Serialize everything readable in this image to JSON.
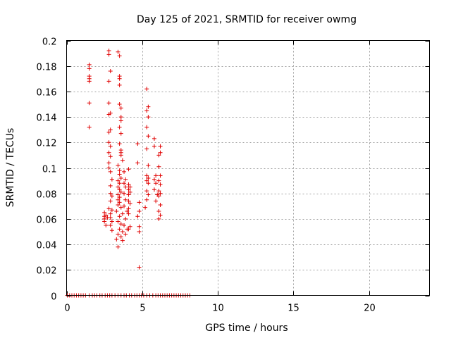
{
  "chart_data": {
    "type": "scatter",
    "title": "Day 125 of 2021, SRMTID for receiver owmg",
    "xlabel": "GPS time / hours",
    "ylabel": "SRMTID / TECUs",
    "xlim": [
      0,
      24
    ],
    "ylim": [
      0,
      0.2
    ],
    "xticks": [
      0,
      5,
      10,
      15,
      20
    ],
    "xtick_labels": [
      "0",
      "5",
      "10",
      "15",
      "20"
    ],
    "yticks": [
      0,
      0.02,
      0.04,
      0.06,
      0.08,
      0.1,
      0.12,
      0.14,
      0.16,
      0.18,
      0.2
    ],
    "ytick_labels": [
      "0",
      "0.02",
      "0.04",
      "0.06",
      "0.08",
      "0.1",
      "0.12",
      "0.14",
      "0.16",
      "0.18",
      "0.2"
    ],
    "grid": true,
    "marker": "+",
    "color": "#e00000",
    "series": [
      {
        "name": "SRMTID",
        "points": [
          [
            1.5,
            0.181
          ],
          [
            1.5,
            0.178
          ],
          [
            1.5,
            0.172
          ],
          [
            1.5,
            0.17
          ],
          [
            1.5,
            0.168
          ],
          [
            1.5,
            0.151
          ],
          [
            1.5,
            0.132
          ],
          [
            2.5,
            0.065
          ],
          [
            2.5,
            0.062
          ],
          [
            2.5,
            0.06
          ],
          [
            2.5,
            0.058
          ],
          [
            2.6,
            0.055
          ],
          [
            2.6,
            0.063
          ],
          [
            2.7,
            0.061
          ],
          [
            2.8,
            0.192
          ],
          [
            2.8,
            0.189
          ],
          [
            2.9,
            0.176
          ],
          [
            2.8,
            0.168
          ],
          [
            2.8,
            0.151
          ],
          [
            2.9,
            0.143
          ],
          [
            2.8,
            0.142
          ],
          [
            2.9,
            0.13
          ],
          [
            2.8,
            0.128
          ],
          [
            2.8,
            0.12
          ],
          [
            2.9,
            0.117
          ],
          [
            2.8,
            0.112
          ],
          [
            2.9,
            0.109
          ],
          [
            2.8,
            0.104
          ],
          [
            2.8,
            0.1
          ],
          [
            2.9,
            0.097
          ],
          [
            3.0,
            0.091
          ],
          [
            2.9,
            0.086
          ],
          [
            2.9,
            0.08
          ],
          [
            3.0,
            0.078
          ],
          [
            2.9,
            0.074
          ],
          [
            2.8,
            0.068
          ],
          [
            2.9,
            0.064
          ],
          [
            2.9,
            0.061
          ],
          [
            3.0,
            0.058
          ],
          [
            2.9,
            0.055
          ],
          [
            3.0,
            0.051
          ],
          [
            3.0,
            0.067
          ],
          [
            3.4,
            0.191
          ],
          [
            3.5,
            0.188
          ],
          [
            3.5,
            0.172
          ],
          [
            3.5,
            0.17
          ],
          [
            3.5,
            0.165
          ],
          [
            3.5,
            0.15
          ],
          [
            3.6,
            0.147
          ],
          [
            3.6,
            0.14
          ],
          [
            3.6,
            0.137
          ],
          [
            3.5,
            0.132
          ],
          [
            3.6,
            0.127
          ],
          [
            3.5,
            0.119
          ],
          [
            3.6,
            0.114
          ],
          [
            3.6,
            0.112
          ],
          [
            3.6,
            0.11
          ],
          [
            3.7,
            0.106
          ],
          [
            3.4,
            0.102
          ],
          [
            3.5,
            0.098
          ],
          [
            3.5,
            0.095
          ],
          [
            3.6,
            0.092
          ],
          [
            3.4,
            0.09
          ],
          [
            3.5,
            0.088
          ],
          [
            3.4,
            0.085
          ],
          [
            3.5,
            0.083
          ],
          [
            3.6,
            0.081
          ],
          [
            3.4,
            0.079
          ],
          [
            3.5,
            0.077
          ],
          [
            3.4,
            0.075
          ],
          [
            3.5,
            0.073
          ],
          [
            3.4,
            0.071
          ],
          [
            3.6,
            0.069
          ],
          [
            3.3,
            0.066
          ],
          [
            3.7,
            0.064
          ],
          [
            3.5,
            0.062
          ],
          [
            3.4,
            0.058
          ],
          [
            3.6,
            0.056
          ],
          [
            3.5,
            0.052
          ],
          [
            3.7,
            0.05
          ],
          [
            3.4,
            0.048
          ],
          [
            3.6,
            0.046
          ],
          [
            3.3,
            0.044
          ],
          [
            3.7,
            0.043
          ],
          [
            3.4,
            0.038
          ],
          [
            3.8,
            0.097
          ],
          [
            3.9,
            0.091
          ],
          [
            3.8,
            0.088
          ],
          [
            3.9,
            0.085
          ],
          [
            3.8,
            0.08
          ],
          [
            3.9,
            0.075
          ],
          [
            3.8,
            0.07
          ],
          [
            4.0,
            0.066
          ],
          [
            3.9,
            0.06
          ],
          [
            3.8,
            0.055
          ],
          [
            4.0,
            0.052
          ],
          [
            3.9,
            0.048
          ],
          [
            4.1,
            0.099
          ],
          [
            4.1,
            0.087
          ],
          [
            4.2,
            0.085
          ],
          [
            4.1,
            0.083
          ],
          [
            4.2,
            0.081
          ],
          [
            4.1,
            0.079
          ],
          [
            4.1,
            0.074
          ],
          [
            4.2,
            0.072
          ],
          [
            4.1,
            0.068
          ],
          [
            4.1,
            0.064
          ],
          [
            4.2,
            0.054
          ],
          [
            4.1,
            0.052
          ],
          [
            4.7,
            0.119
          ],
          [
            4.7,
            0.104
          ],
          [
            4.8,
            0.073
          ],
          [
            4.8,
            0.066
          ],
          [
            4.7,
            0.062
          ],
          [
            4.8,
            0.054
          ],
          [
            4.8,
            0.05
          ],
          [
            4.8,
            0.022
          ],
          [
            5.3,
            0.162
          ],
          [
            5.4,
            0.148
          ],
          [
            5.3,
            0.145
          ],
          [
            5.4,
            0.14
          ],
          [
            5.3,
            0.132
          ],
          [
            5.4,
            0.125
          ],
          [
            5.3,
            0.115
          ],
          [
            5.4,
            0.102
          ],
          [
            5.3,
            0.094
          ],
          [
            5.4,
            0.092
          ],
          [
            5.3,
            0.09
          ],
          [
            5.4,
            0.088
          ],
          [
            5.3,
            0.082
          ],
          [
            5.4,
            0.079
          ],
          [
            5.3,
            0.075
          ],
          [
            5.2,
            0.069
          ],
          [
            5.8,
            0.123
          ],
          [
            5.8,
            0.117
          ],
          [
            5.9,
            0.094
          ],
          [
            5.8,
            0.091
          ],
          [
            5.9,
            0.088
          ],
          [
            5.8,
            0.083
          ],
          [
            6.0,
            0.079
          ],
          [
            5.9,
            0.074
          ],
          [
            6.2,
            0.117
          ],
          [
            6.2,
            0.112
          ],
          [
            6.1,
            0.11
          ],
          [
            6.1,
            0.101
          ],
          [
            6.2,
            0.094
          ],
          [
            6.1,
            0.09
          ],
          [
            6.2,
            0.087
          ],
          [
            6.1,
            0.082
          ],
          [
            6.2,
            0.08
          ],
          [
            6.1,
            0.078
          ],
          [
            6.2,
            0.071
          ],
          [
            6.1,
            0.066
          ],
          [
            6.2,
            0.063
          ],
          [
            6.1,
            0.06
          ]
        ],
        "zero_values_x": [
          0.05,
          0.2,
          0.35,
          0.5,
          0.65,
          0.8,
          0.95,
          1.1,
          1.25,
          1.5,
          1.7,
          1.85,
          2.0,
          2.2,
          2.35,
          2.55,
          2.7,
          2.85,
          3.0,
          3.2,
          3.4,
          3.6,
          3.8,
          3.95,
          4.15,
          4.3,
          4.5,
          4.65,
          4.8,
          4.95,
          5.1,
          5.3,
          5.5,
          5.7,
          5.9,
          6.05,
          6.2,
          6.35,
          6.5,
          6.65,
          6.8,
          6.95,
          7.1,
          7.25,
          7.4,
          7.55,
          7.7,
          7.85,
          8.0,
          8.15
        ]
      }
    ]
  }
}
